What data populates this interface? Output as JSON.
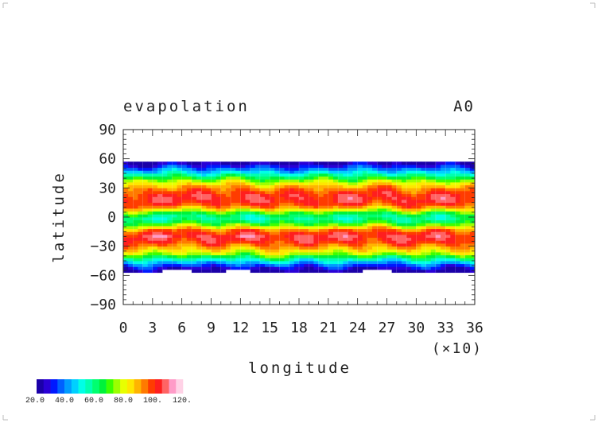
{
  "chart_data": {
    "type": "heatmap",
    "title": "evapolation",
    "corner_label": "A0",
    "xlabel": "longitude",
    "ylabel": "latitude",
    "x_multiplier": "(×10)",
    "xlim": [
      0,
      36
    ],
    "ylim": [
      -90,
      90
    ],
    "xticks": [
      "0",
      "3",
      "6",
      "9",
      "12",
      "15",
      "18",
      "21",
      "24",
      "27",
      "30",
      "33",
      "36"
    ],
    "yticks": [
      "90",
      "60",
      "30",
      "0",
      "−30",
      "−60",
      "−90"
    ],
    "colorbar": {
      "labels": [
        "20.0",
        "40.0",
        "60.0",
        "80.0",
        "100.",
        "120."
      ],
      "range": [
        20,
        130
      ],
      "colors": [
        "#1b00a8",
        "#2a00d6",
        "#0018ff",
        "#0060ff",
        "#009cff",
        "#00d0ff",
        "#00ffe6",
        "#00ffb0",
        "#00ff70",
        "#00f23a",
        "#3cff00",
        "#9cff00",
        "#e8ff00",
        "#ffe600",
        "#ffb400",
        "#ff7a00",
        "#ff3c00",
        "#ff1e1e",
        "#ff6464",
        "#ff9cc8",
        "#ffd2e6"
      ]
    },
    "profile": {
      "latitudes": [
        -90,
        -60,
        -56,
        -50,
        -44,
        -38,
        -32,
        -26,
        -20,
        -14,
        -10,
        -6,
        -2,
        0,
        4,
        8,
        12,
        18,
        24,
        30,
        36,
        42,
        48,
        54,
        57,
        60,
        90
      ],
      "values": [
        null,
        null,
        20,
        35,
        55,
        80,
        95,
        108,
        115,
        105,
        88,
        70,
        62,
        60,
        70,
        90,
        105,
        113,
        110,
        100,
        85,
        65,
        45,
        28,
        20,
        null,
        null
      ]
    }
  }
}
